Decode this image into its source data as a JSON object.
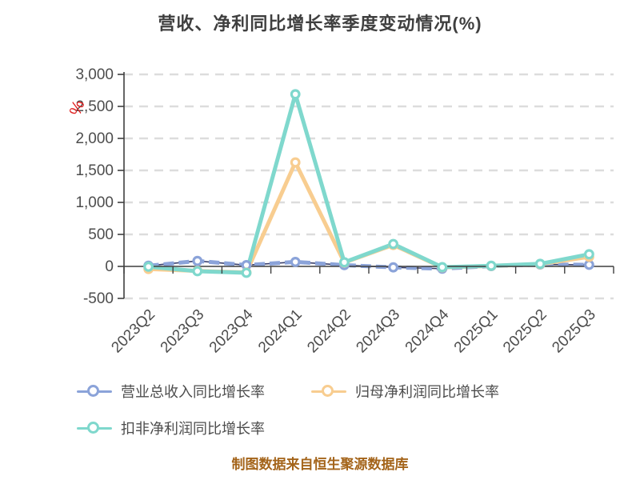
{
  "title": "营收、净利同比增长率季度变动情况(%)",
  "footer": "制图数据来自恒生聚源数据库",
  "colors": {
    "title": "#3f3f3f",
    "axis": "#3f3f3f",
    "axis_label": "#4d4d4d",
    "grid": "#dcdcdc",
    "unit_label": "#e02222",
    "footer": "#a4641a",
    "revenue_core_line": "#39406e",
    "background": "#ffffff"
  },
  "chart_data": {
    "type": "line",
    "title": "营收、净利同比增长率季度变动情况(%)",
    "xlabel": "",
    "ylabel": "%",
    "y_unit_label": "%",
    "ylim": [
      -500,
      3000
    ],
    "grid": "horizontal-dashed",
    "legend_position": "bottom-left",
    "categories": [
      "2023Q2",
      "2023Q3",
      "2023Q4",
      "2024Q1",
      "2024Q2",
      "2024Q3",
      "2024Q4",
      "2025Q1",
      "2025Q2",
      "2025Q3"
    ],
    "yticks": {
      "values": [
        3000,
        2500,
        2000,
        1500,
        1000,
        500,
        0,
        -500
      ],
      "labels": [
        "3,000",
        "2,500",
        "2,000",
        "1,500",
        "1,000",
        "500",
        "0",
        "-500"
      ]
    },
    "series": [
      {
        "name": "营业总收入同比增长率",
        "color": "#8BA3D9",
        "style": "dashed",
        "values": [
          10,
          85,
          20,
          70,
          20,
          -15,
          -35,
          5,
          30,
          25
        ]
      },
      {
        "name": "归母净利润同比增长率",
        "color": "#F8CD90",
        "style": "solid",
        "values": [
          -40,
          -70,
          -95,
          1625,
          60,
          335,
          -15,
          8,
          35,
          150
        ]
      },
      {
        "name": "扣非净利润同比增长率",
        "color": "#7FD8CD",
        "style": "solid",
        "values": [
          -5,
          -75,
          -100,
          2690,
          65,
          350,
          -12,
          10,
          40,
          190
        ]
      }
    ]
  }
}
